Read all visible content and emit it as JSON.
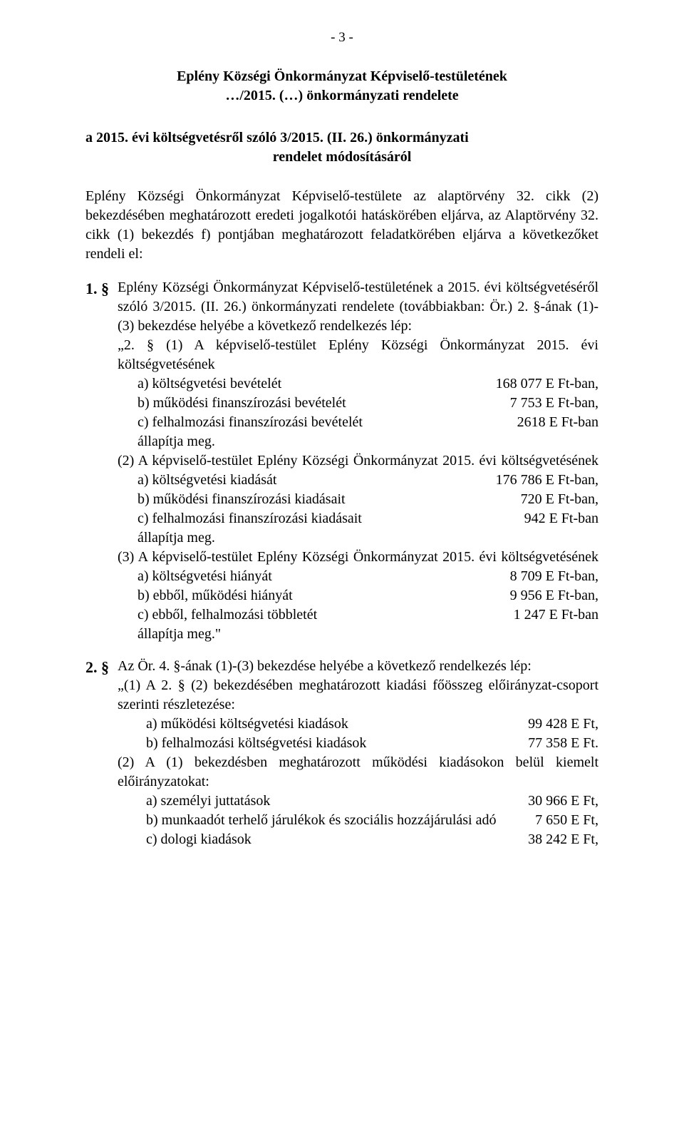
{
  "page_number": "- 3 -",
  "title": {
    "line1": "Eplény Községi Önkormányzat Képviselő-testületének",
    "line2": "…/2015. (…) önkormányzati rendelete"
  },
  "subtitle": {
    "left": "a 2015. évi költségvetésről szóló 3/2015. (II. 26.) önkormányzati",
    "center": "rendelet módosításáról"
  },
  "preamble": "Eplény Községi Önkormányzat Képviselő-testülete az alaptörvény 32. cikk (2) bekezdésében meghatározott eredeti jogalkotói hatáskörében eljárva, az Alaptörvény 32. cikk (1) bekezdés f) pontjában meghatározott feladatkörében eljárva a következőket rendeli el:",
  "section1": {
    "num": "1. §",
    "intro": "Eplény Községi Önkormányzat Képviselő-testületének a 2015. évi költségvetéséről szóló 3/2015. (II. 26.) önkormányzati rendelete (továbbiakban: Ör.) 2. §-ának (1)-(3) bekezdése helyébe a következő rendelkezés lép:",
    "p2_header": "„2. § (1) A képviselő-testület Eplény Községi Önkormányzat 2015. évi költségvetésének",
    "p2_a_l": "a)  költségvetési bevételét",
    "p2_a_r": "168 077 E Ft-ban,",
    "p2_b_l": "b)  működési finanszírozási bevételét",
    "p2_b_r": "7 753 E Ft-ban,",
    "p2_c_l": "c)  felhalmozási finanszírozási bevételét",
    "p2_c_r": "2618 E Ft-ban",
    "p2_close": "állapítja meg.",
    "p2_2_header": "(2) A képviselő-testület Eplény Községi Önkormányzat 2015. évi költségvetésének",
    "p2_2_a_l": "a)  költségvetési kiadását",
    "p2_2_a_r": "176 786 E Ft-ban,",
    "p2_2_b_l": "b)  működési finanszírozási kiadásait",
    "p2_2_b_r": "720 E Ft-ban,",
    "p2_2_c_l": "c)  felhalmozási finanszírozási kiadásait",
    "p2_2_c_r": "942 E Ft-ban",
    "p2_2_close": "állapítja meg.",
    "p2_3_header": "(3) A képviselő-testület Eplény Községi Önkormányzat 2015. évi költségvetésének",
    "p2_3_a_l": "a)  költségvetési hiányát",
    "p2_3_a_r": "8 709 E Ft-ban,",
    "p2_3_b_l": "b)  ebből, működési hiányát",
    "p2_3_b_r": "9 956 E Ft-ban,",
    "p2_3_c_l": "c)  ebből, felhalmozási többletét",
    "p2_3_c_r": "1 247 E Ft-ban",
    "p2_3_close": "állapítja meg.\""
  },
  "section2": {
    "num": "2. §",
    "intro": "Az Ör. 4. §-ának (1)-(3) bekezdése helyébe a következő rendelkezés lép:",
    "p1": "„(1) A 2. § (2) bekezdésében meghatározott kiadási főösszeg előirányzat-csoport szerinti részletezése:",
    "p1_a_l": "a) működési költségvetési kiadások",
    "p1_a_r": "99 428 E Ft,",
    "p1_b_l": "b) felhalmozási költségvetési kiadások",
    "p1_b_r": "77 358 E Ft.",
    "p2": "(2) A (1) bekezdésben meghatározott működési kiadásokon belül kiemelt előirányzatokat:",
    "p2_a_l": "a) személyi juttatások",
    "p2_a_r": "30 966 E Ft,",
    "p2_b_l": "b) munkaadót terhelő járulékok és szociális hozzájárulási adó",
    "p2_b_r": "7 650 E Ft,",
    "p2_c_l": "c) dologi kiadások",
    "p2_c_r": "38 242 E Ft,"
  }
}
